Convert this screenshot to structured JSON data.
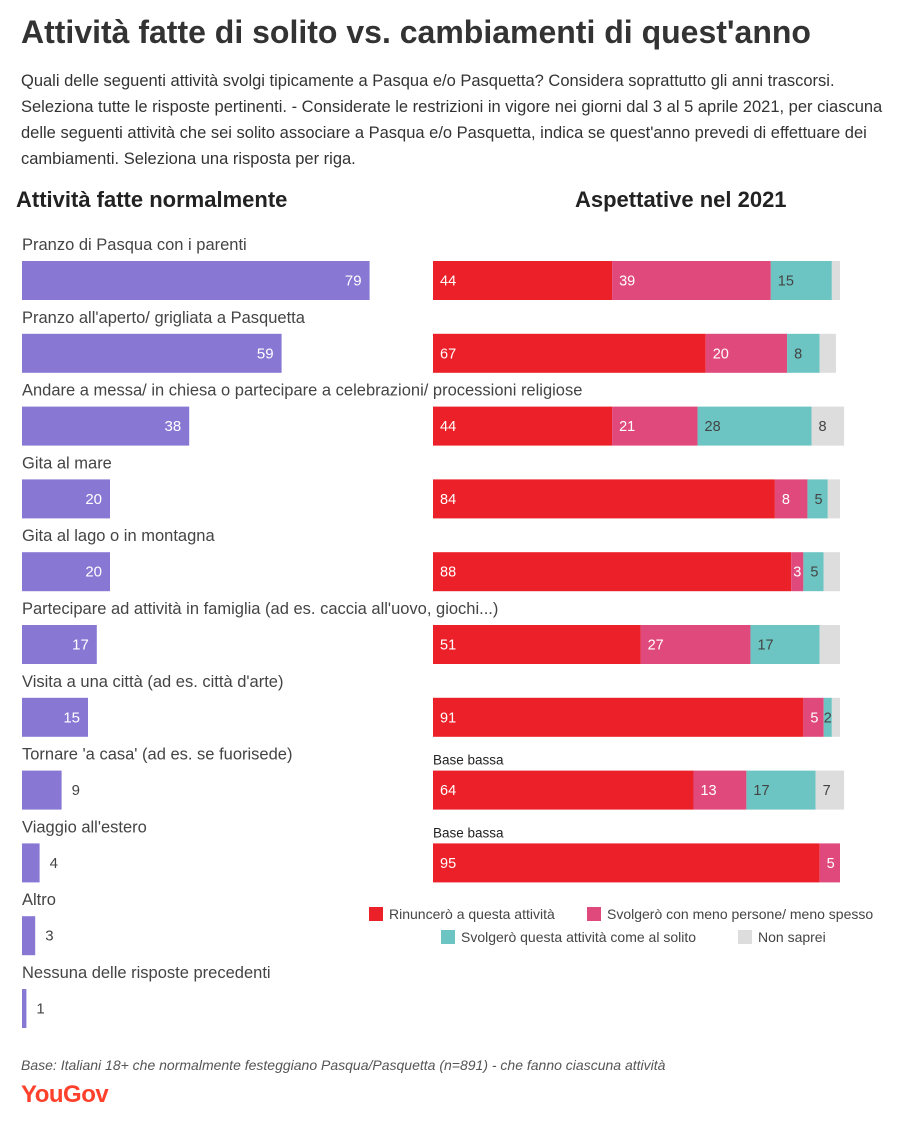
{
  "title": "Attività fatte di solito vs. cambiamenti di quest'anno",
  "subtitle": "Quali delle seguenti attività svolgi tipicamente a Pasqua e/o Pasquetta? Considera soprattutto gli anni trascorsi. Seleziona tutte le risposte pertinenti. - Considerate le restrizioni in vigore nei giorni dal 3 al 5 aprile 2021, per ciascuna delle seguenti attività che sei solito associare a Pasqua e/o Pasquetta, indica se quest'anno prevedi di effettuare dei cambiamenti. Seleziona una risposta per riga.",
  "left_heading": "Attività fatte normalmente",
  "right_heading": "Aspettative nel 2021",
  "footnote": "Base: Italiani 18+ che normalmente festeggiano Pasqua/Pasquetta (n=891) - che fanno ciascuna attività",
  "logo": "YouGov",
  "colors": {
    "normal": "#8878d4",
    "rinuncero": "#ec2028",
    "meno": "#e0497c",
    "solito": "#6cc5c2",
    "non_saprei": "#dddddd"
  },
  "chart_data": [
    {
      "type": "bar",
      "orientation": "horizontal",
      "title": "Attività fatte normalmente",
      "categories": [
        "Pranzo di Pasqua con i parenti",
        "Pranzo all'aperto/ grigliata a Pasquetta",
        "Andare a messa/ in chiesa o partecipare a celebrazioni/ processioni religiose",
        "Gita al mare",
        "Gita al lago o in montagna",
        "Partecipare ad attività in famiglia (ad es. caccia all'uovo, giochi...)",
        "Visita a una città (ad es. città d'arte)",
        "Tornare 'a casa' (ad es. se fuorisede)",
        "Viaggio all'estero",
        "Altro",
        "Nessuna delle risposte precedenti"
      ],
      "values": [
        79,
        59,
        38,
        20,
        20,
        17,
        15,
        9,
        4,
        3,
        1
      ],
      "xlim": [
        0,
        100
      ]
    },
    {
      "type": "bar",
      "orientation": "horizontal",
      "stacked": true,
      "title": "Aspettative nel 2021",
      "categories": [
        "Pranzo di Pasqua con i parenti",
        "Pranzo all'aperto/ grigliata a Pasquetta",
        "Andare a messa/ in chiesa o partecipare a celebrazioni/ processioni religiose",
        "Gita al mare",
        "Gita al lago o in montagna",
        "Partecipare ad attività in famiglia (ad es. caccia all'uovo, giochi...)",
        "Visita a una città (ad es. città d'arte)",
        "Tornare 'a casa' (ad es. se fuorisede)",
        "Viaggio all'estero"
      ],
      "series": [
        {
          "name": "Rinuncerò a questa attività",
          "values": [
            44,
            67,
            44,
            84,
            88,
            51,
            91,
            64,
            95
          ]
        },
        {
          "name": "Svolgerò con meno persone/ meno spesso",
          "values": [
            39,
            20,
            21,
            8,
            3,
            27,
            5,
            13,
            5
          ]
        },
        {
          "name": "Svolgerò questa attività come al solito",
          "values": [
            15,
            8,
            28,
            5,
            5,
            17,
            2,
            17,
            0
          ]
        },
        {
          "name": "Non saprei",
          "values": [
            2,
            4,
            8,
            3,
            4,
            5,
            2,
            7,
            0
          ]
        }
      ],
      "labels_shown": [
        [
          44,
          39,
          15,
          null
        ],
        [
          67,
          20,
          8,
          null
        ],
        [
          44,
          21,
          28,
          8
        ],
        [
          84,
          8,
          5,
          null
        ],
        [
          88,
          3,
          5,
          null
        ],
        [
          51,
          27,
          17,
          null
        ],
        [
          91,
          5,
          2,
          null
        ],
        [
          64,
          13,
          17,
          7
        ],
        [
          95,
          5,
          null,
          null
        ]
      ],
      "notes": [
        null,
        null,
        null,
        null,
        null,
        null,
        null,
        "Base bassa",
        "Base bassa"
      ],
      "xlim": [
        0,
        100
      ],
      "legend_position": "bottom-right"
    }
  ]
}
